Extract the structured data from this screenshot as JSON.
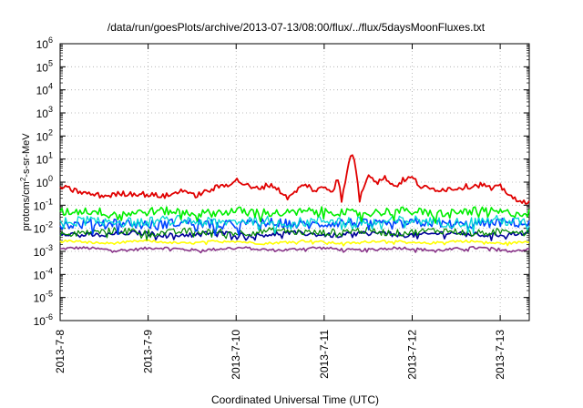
{
  "chart_data": {
    "type": "line",
    "title": "/data/run/goesPlots/archive/2013-07-13/08:00/flux/../flux/5daysMoonFluxes.txt",
    "xlabel": "Coordinated Universal Time (UTC)",
    "ylabel": {
      "prefix": "protons/cm",
      "sup": "2",
      "suffix": "-s-sr-MeV"
    },
    "y_scale": "log",
    "ylim_exp": [
      -6,
      6
    ],
    "y_ticks": [
      {
        "base": "10",
        "exp": "-6"
      },
      {
        "base": "10",
        "exp": "-5"
      },
      {
        "base": "10",
        "exp": "-4"
      },
      {
        "base": "10",
        "exp": "-3"
      },
      {
        "base": "10",
        "exp": "-2"
      },
      {
        "base": "10",
        "exp": "-1"
      },
      {
        "base": "10",
        "exp": "0"
      },
      {
        "base": "10",
        "exp": "1"
      },
      {
        "base": "10",
        "exp": "2"
      },
      {
        "base": "10",
        "exp": "3"
      },
      {
        "base": "10",
        "exp": "4"
      },
      {
        "base": "10",
        "exp": "5"
      },
      {
        "base": "10",
        "exp": "6"
      }
    ],
    "x_unit": "day",
    "xlim": [
      0,
      5.33
    ],
    "x_ticks": [
      {
        "value": 0,
        "label": "2013-7-8"
      },
      {
        "value": 1,
        "label": "2013-7-9"
      },
      {
        "value": 2,
        "label": "2013-7-10"
      },
      {
        "value": 3,
        "label": "2013-7-11"
      },
      {
        "value": 4,
        "label": "2013-7-12"
      },
      {
        "value": 5,
        "label": "2013-7-13"
      }
    ],
    "grid": true,
    "legend": "none",
    "series": [
      {
        "color": "#e00000",
        "width": 1.8,
        "noise": 0.12,
        "points": [
          [
            0,
            -0.2
          ],
          [
            0.1,
            -0.3
          ],
          [
            0.3,
            -0.5
          ],
          [
            0.5,
            -0.6
          ],
          [
            0.7,
            -0.5
          ],
          [
            0.9,
            -0.5
          ],
          [
            1.0,
            -0.55
          ],
          [
            1.2,
            -0.6
          ],
          [
            1.3,
            -0.5
          ],
          [
            1.4,
            -0.3
          ],
          [
            1.5,
            -0.6
          ],
          [
            1.6,
            -0.5
          ],
          [
            1.8,
            -0.2
          ],
          [
            1.9,
            -0.1
          ],
          [
            2.0,
            0.1
          ],
          [
            2.1,
            -0.1
          ],
          [
            2.2,
            -0.3
          ],
          [
            2.4,
            -0.1
          ],
          [
            2.6,
            -0.7
          ],
          [
            2.7,
            -0.3
          ],
          [
            2.8,
            -0.1
          ],
          [
            2.9,
            -0.4
          ],
          [
            3.0,
            -0.2
          ],
          [
            3.1,
            -0.4
          ],
          [
            3.15,
            0.3
          ],
          [
            3.2,
            -0.8
          ],
          [
            3.3,
            1.2
          ],
          [
            3.35,
            1.0
          ],
          [
            3.4,
            -0.8
          ],
          [
            3.5,
            0.4
          ],
          [
            3.6,
            0.0
          ],
          [
            3.7,
            0.2
          ],
          [
            3.8,
            -0.2
          ],
          [
            3.9,
            0.1
          ],
          [
            4.0,
            0.2
          ],
          [
            4.05,
            0.0
          ],
          [
            4.1,
            -0.2
          ],
          [
            4.2,
            -0.3
          ],
          [
            4.4,
            -0.3
          ],
          [
            4.6,
            -0.2
          ],
          [
            4.8,
            -0.1
          ],
          [
            4.9,
            -0.3
          ],
          [
            5.0,
            -0.2
          ],
          [
            5.1,
            -0.5
          ],
          [
            5.2,
            -0.9
          ],
          [
            5.33,
            -0.8
          ]
        ]
      },
      {
        "color": "#00ee00",
        "width": 1.6,
        "noise": 0.18,
        "base": -1.3
      },
      {
        "color": "#00d6d6",
        "width": 1.3,
        "noise": 0.22,
        "base": -1.7
      },
      {
        "color": "#0044ff",
        "width": 1.6,
        "noise": 0.2,
        "base": -1.8
      },
      {
        "color": "#008800",
        "width": 1.2,
        "noise": 0.15,
        "base": -2.15
      },
      {
        "color": "#000099",
        "width": 1.6,
        "noise": 0.1,
        "base": -2.25
      },
      {
        "color": "#ffff00",
        "width": 1.6,
        "noise": 0.05,
        "base": -2.6
      },
      {
        "color": "#883388",
        "width": 1.6,
        "noise": 0.06,
        "base": -2.9
      }
    ]
  }
}
